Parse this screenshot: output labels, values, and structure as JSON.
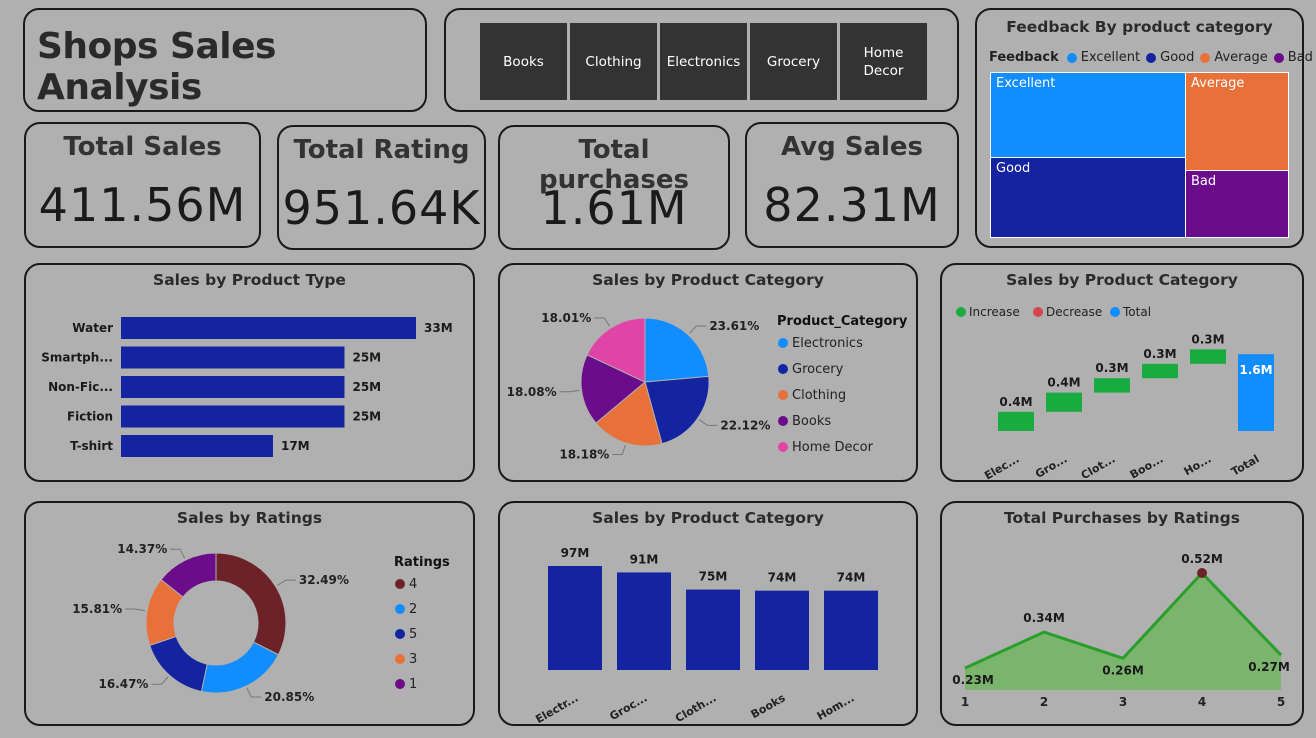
{
  "header": {
    "title": "Shops Sales Analysis"
  },
  "slicer": {
    "items": [
      "Books",
      "Clothing",
      "Electronics",
      "Grocery",
      "Home\nDecor"
    ]
  },
  "kpis": [
    {
      "label": "Total Sales",
      "value": "411.56M"
    },
    {
      "label": "Total Rating",
      "value": "951.64K"
    },
    {
      "label": "Total purchases",
      "value": "1.61M"
    },
    {
      "label": "Avg Sales",
      "value": "82.31M"
    }
  ],
  "colors": {
    "navy": "#1423A0",
    "blue": "#118DFF",
    "orange": "#E8713A",
    "purple": "#6B0C8A",
    "pink": "#E044A7",
    "maroon": "#6B2328",
    "green": "#1AAB40",
    "red": "#D64550",
    "area": "#7BB46C",
    "area_line": "#2A9E2A"
  },
  "chart_data": [
    {
      "id": "feedback-treemap",
      "type": "treemap",
      "title": "Feedback By product category",
      "legend_title": "Feedback",
      "categories": [
        "Excellent",
        "Good",
        "Average",
        "Bad"
      ],
      "legend_colors": [
        "#118DFF",
        "#1423A0",
        "#E8713A",
        "#6B0C8A"
      ]
    },
    {
      "id": "sales-by-product-type",
      "type": "bar",
      "orientation": "horizontal",
      "title": "Sales by Product Type",
      "categories": [
        "Water",
        "Smartph...",
        "Non-Fic...",
        "Fiction",
        "T-shirt"
      ],
      "values": [
        33,
        25,
        25,
        25,
        17
      ],
      "labels": [
        "33M",
        "25M",
        "25M",
        "25M",
        "17M"
      ]
    },
    {
      "id": "sales-by-product-category-pie",
      "type": "pie",
      "title": "Sales by Product Category",
      "legend_title": "Product_Category",
      "categories": [
        "Electronics",
        "Grocery",
        "Clothing",
        "Books",
        "Home Decor"
      ],
      "values": [
        23.61,
        22.12,
        18.18,
        18.08,
        18.01
      ],
      "labels": [
        "23.61%",
        "22.12%",
        "18.18%",
        "18.08%",
        "18.01%"
      ],
      "colors": [
        "#118DFF",
        "#1423A0",
        "#E8713A",
        "#6B0C8A",
        "#E044A7"
      ]
    },
    {
      "id": "sales-by-product-category-waterfall",
      "type": "waterfall",
      "title": "Sales by Product Category",
      "legend": [
        "Increase",
        "Decrease",
        "Total"
      ],
      "legend_colors": [
        "#1AAB40",
        "#D64550",
        "#118DFF"
      ],
      "categories": [
        "Elec...",
        "Gro...",
        "Clot...",
        "Boo...",
        "Ho...",
        "Total"
      ],
      "values": [
        0.4,
        0.4,
        0.3,
        0.3,
        0.3,
        1.6
      ],
      "labels": [
        "0.4M",
        "0.4M",
        "0.3M",
        "0.3M",
        "0.3M",
        "1.6M"
      ]
    },
    {
      "id": "sales-by-ratings-donut",
      "type": "pie",
      "title": "Sales by Ratings",
      "legend_title": "Ratings",
      "categories": [
        "4",
        "2",
        "5",
        "3",
        "1"
      ],
      "values": [
        32.49,
        20.85,
        16.47,
        15.81,
        14.37
      ],
      "labels": [
        "32.49%",
        "20.85%",
        "16.47%",
        "15.81%",
        "14.37%"
      ],
      "colors": [
        "#6B2328",
        "#118DFF",
        "#1423A0",
        "#E8713A",
        "#6B0C8A"
      ]
    },
    {
      "id": "sales-by-product-category-column",
      "type": "bar",
      "title": "Sales by Product Category",
      "categories": [
        "Electr...",
        "Groc...",
        "Cloth...",
        "Books",
        "Hom..."
      ],
      "values": [
        97,
        91,
        75,
        74,
        74
      ],
      "labels": [
        "97M",
        "91M",
        "75M",
        "74M",
        "74M"
      ]
    },
    {
      "id": "total-purchases-by-ratings",
      "type": "area",
      "title": "Total Purchases by Ratings",
      "x": [
        "1",
        "2",
        "3",
        "4",
        "5"
      ],
      "values": [
        0.23,
        0.34,
        0.26,
        0.52,
        0.27
      ],
      "labels": [
        "0.23M",
        "0.34M",
        "0.26M",
        "0.52M",
        "0.27M"
      ]
    }
  ]
}
